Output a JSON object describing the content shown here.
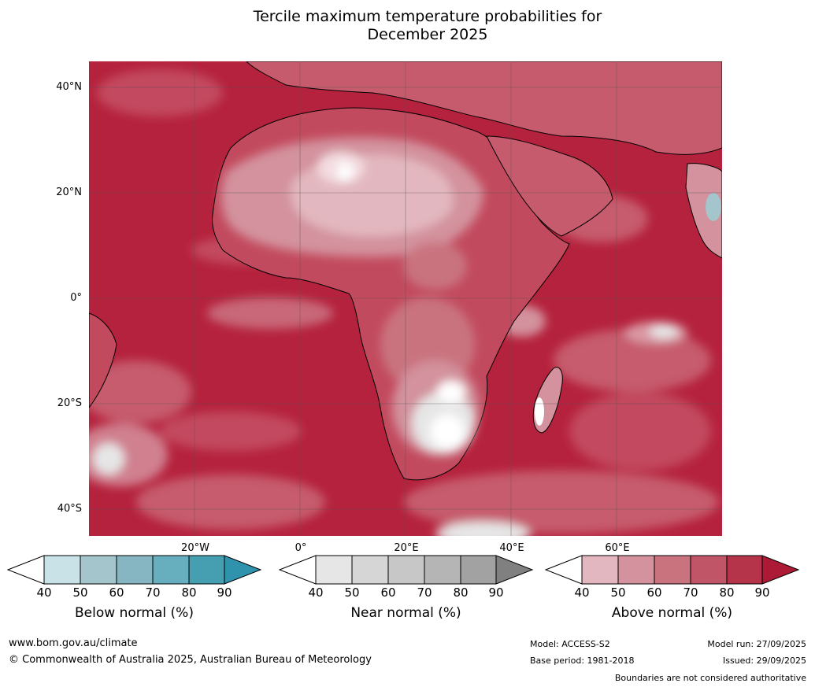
{
  "title_line1": "Tercile maximum temperature probabilities for",
  "title_line2": "December 2025",
  "lat_labels": [
    "40°N",
    "20°N",
    "0°",
    "20°S",
    "40°S"
  ],
  "lon_labels": [
    "20°W",
    "0°",
    "20°E",
    "40°E",
    "60°E"
  ],
  "legends": [
    {
      "title": "Below normal (%)",
      "ticks": [
        "40",
        "50",
        "60",
        "70",
        "80",
        "90"
      ],
      "colors": [
        "#c9e2e8",
        "#a4c5cc",
        "#86b6c2",
        "#67aebe",
        "#469fb1",
        "#2f93ad"
      ]
    },
    {
      "title": "Near normal (%)",
      "ticks": [
        "40",
        "50",
        "60",
        "70",
        "80",
        "90"
      ],
      "colors": [
        "#e6e6e6",
        "#d6d6d6",
        "#c7c7c7",
        "#b5b5b5",
        "#a2a2a2",
        "#808080"
      ]
    },
    {
      "title": "Above normal (%)",
      "ticks": [
        "40",
        "50",
        "60",
        "70",
        "80",
        "90"
      ],
      "colors": [
        "#e3b7bf",
        "#d3929d",
        "#c9737f",
        "#bf5566",
        "#b5344a",
        "#ad1a36"
      ]
    }
  ],
  "footer": {
    "website": "www.bom.gov.au/climate",
    "copyright": "© Commonwealth of Australia 2025, Australian Bureau of Meteorology",
    "model": "Model: ACCESS-S2",
    "base_period": "Base period: 1981-2018",
    "model_run": "Model run: 27/09/2025",
    "issued": "Issued: 29/09/2025",
    "disclaimer": "Boundaries are not considered authoritative"
  }
}
